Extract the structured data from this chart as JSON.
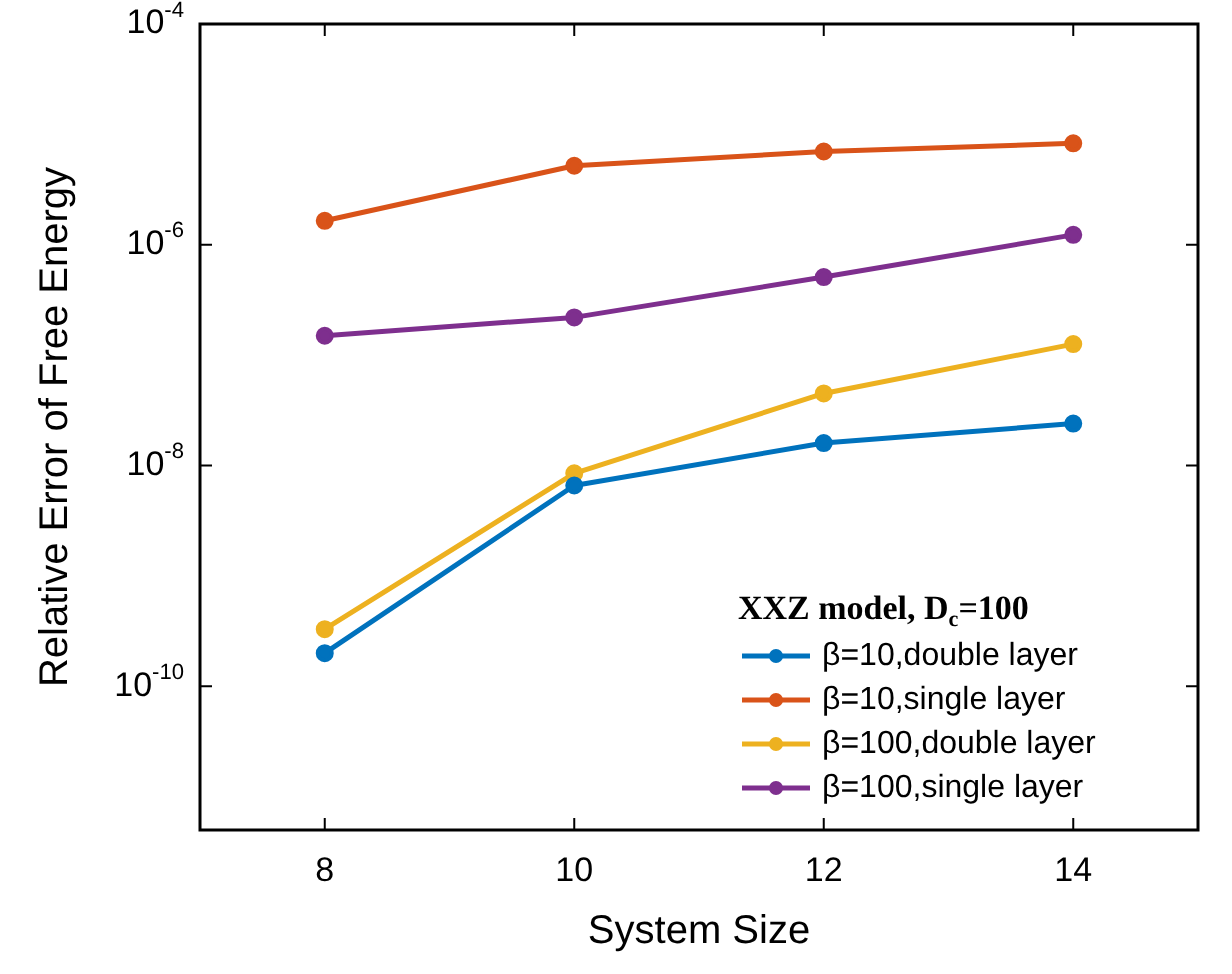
{
  "chart_data": {
    "type": "line",
    "xlabel": "System Size",
    "ylabel": "Relative Error of Free Energy",
    "legend_title": "XXZ model, D$_{c}$=100",
    "x": [
      8,
      10,
      12,
      14
    ],
    "xlim": [
      7,
      15
    ],
    "xticks": [
      8,
      10,
      12,
      14
    ],
    "log": "y",
    "ylim": [
      5e-12,
      0.0001
    ],
    "yticks": [
      {
        "value": 0.0001,
        "label": "10$^{-4}$"
      },
      {
        "value": 1e-06,
        "label": "10$^{-6}$"
      },
      {
        "value": 1e-08,
        "label": "10$^{-8}$"
      },
      {
        "value": 1e-10,
        "label": "10$^{-10}$"
      }
    ],
    "grid": false,
    "legend": "bottom right",
    "marker": "circle",
    "line_style": "solid",
    "series": [
      {
        "name": "β=10,double layer",
        "color": "#0072bd",
        "values": [
          2e-10,
          6.6e-09,
          1.6e-08,
          2.4e-08
        ]
      },
      {
        "name": "β=10,single layer",
        "color": "#d95319",
        "values": [
          1.65e-06,
          5.2e-06,
          7e-06,
          8.3e-06
        ]
      },
      {
        "name": "β=100,double layer",
        "color": "#edb120",
        "values": [
          3.3e-10,
          8.5e-09,
          4.5e-08,
          1.26e-07
        ]
      },
      {
        "name": "β=100,single layer",
        "color": "#7e2f8e",
        "values": [
          1.5e-07,
          2.2e-07,
          5.1e-07,
          1.23e-06
        ]
      }
    ]
  }
}
